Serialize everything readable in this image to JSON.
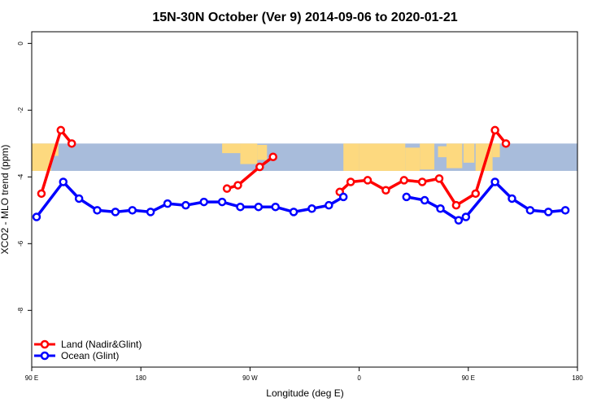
{
  "chart_data": {
    "type": "line",
    "title": "15N-30N October (Ver 9)   2014-09-06 to 2020-01-21",
    "xlabel": "Longitude (deg E)",
    "ylabel": "XCO2 - MLO trend (ppm)",
    "x_ticks": [
      {
        "value": 90,
        "label": "90 E"
      },
      {
        "value": 180,
        "label": "180"
      },
      {
        "value": 270,
        "label": "90 W"
      },
      {
        "value": 360,
        "label": "0"
      },
      {
        "value": 450,
        "label": "90 E"
      },
      {
        "value": 540,
        "label": "180"
      }
    ],
    "y_ticks": [
      {
        "value": 0,
        "label": "0"
      },
      {
        "value": -2,
        "label": "-2"
      },
      {
        "value": -4,
        "label": "-4"
      },
      {
        "value": -6,
        "label": "-6"
      },
      {
        "value": -8,
        "label": "-8"
      }
    ],
    "xlim": [
      90,
      540
    ],
    "ylim": [
      -9.7,
      0.35
    ],
    "map_band": {
      "ymin": -3.82,
      "ymax": -3.0,
      "ocean_color": "#a8bcdb",
      "land_color": "#fdd97f"
    },
    "series": [
      {
        "name": "Land (Nadir&Glint)",
        "color": "#ff0000",
        "segments": [
          [
            [
              98,
              -4.5
            ],
            [
              114,
              -2.6
            ],
            [
              123,
              -3.0
            ]
          ],
          [
            [
              251,
              -4.35
            ],
            [
              260,
              -4.25
            ],
            [
              278,
              -3.7
            ],
            [
              289,
              -3.4
            ]
          ],
          [
            [
              344,
              -4.45
            ],
            [
              353,
              -4.15
            ],
            [
              367,
              -4.1
            ],
            [
              382,
              -4.4
            ],
            [
              397,
              -4.1
            ],
            [
              412,
              -4.15
            ],
            [
              426,
              -4.05
            ],
            [
              440,
              -4.85
            ],
            [
              456,
              -4.5
            ],
            [
              472,
              -2.6
            ],
            [
              481,
              -3.0
            ]
          ]
        ]
      },
      {
        "name": "Ocean (Glint)",
        "color": "#0000ff",
        "segments": [
          [
            [
              94,
              -5.2
            ],
            [
              116,
              -4.15
            ],
            [
              129,
              -4.65
            ],
            [
              144,
              -5.0
            ],
            [
              159,
              -5.05
            ],
            [
              173,
              -5.0
            ],
            [
              188,
              -5.05
            ],
            [
              202,
              -4.8
            ],
            [
              217,
              -4.85
            ],
            [
              232,
              -4.75
            ],
            [
              247,
              -4.75
            ],
            [
              262,
              -4.9
            ],
            [
              277,
              -4.9
            ],
            [
              291,
              -4.9
            ],
            [
              306,
              -5.05
            ],
            [
              321,
              -4.95
            ],
            [
              335,
              -4.85
            ],
            [
              347,
              -4.6
            ]
          ],
          [
            [
              399,
              -4.6
            ],
            [
              414,
              -4.7
            ],
            [
              427,
              -4.95
            ],
            [
              442,
              -5.3
            ],
            [
              448,
              -5.2
            ],
            [
              472,
              -4.15
            ],
            [
              486,
              -4.65
            ],
            [
              501,
              -5.0
            ],
            [
              516,
              -5.05
            ],
            [
              530,
              -5.0
            ]
          ]
        ]
      }
    ],
    "legend_position": "bottom-left"
  }
}
